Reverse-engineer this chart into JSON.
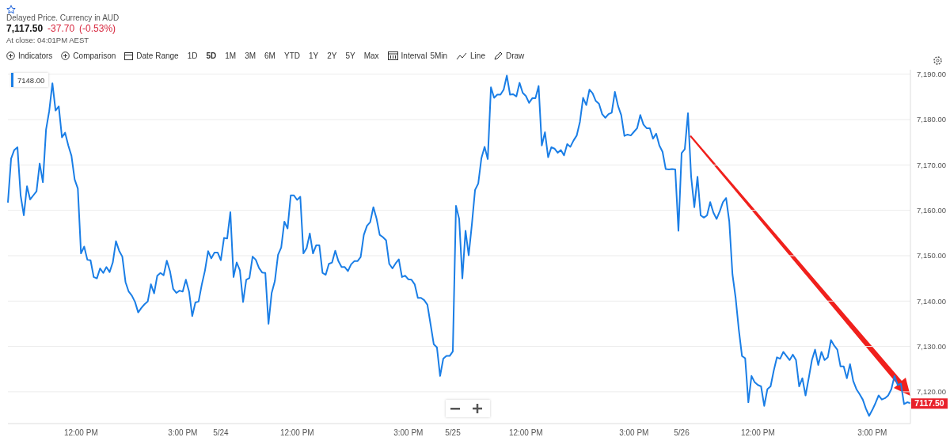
{
  "chart_data": {
    "type": "line",
    "subtitle": "Delayed Price. Currency in AUD",
    "annotations": [
      "7,117.50",
      "-37.70",
      "(-0.53%)",
      "At close: 04:01PM AEST",
      "Indicators",
      "Comparison",
      "Date Range",
      "1D",
      "5D",
      "1M",
      "3M",
      "6M",
      "YTD",
      "1Y",
      "2Y",
      "5Y",
      "Max",
      "Interval",
      "5Min",
      "Line",
      "Draw",
      "7148.00",
      "7117.50"
    ],
    "categories": [
      null,
      null,
      null,
      null,
      null,
      null,
      null,
      null,
      null,
      null,
      null,
      null,
      null,
      null,
      null,
      null,
      null,
      null,
      null,
      null,
      null,
      null,
      null,
      "12:00 PM",
      null,
      null,
      null,
      null,
      null,
      null,
      null,
      null,
      null,
      null,
      null,
      null,
      null,
      null,
      null,
      null,
      null,
      null,
      null,
      null,
      null,
      null,
      null,
      null,
      null,
      null,
      null,
      null,
      null,
      null,
      null,
      "3:00 PM",
      null,
      null,
      null,
      null,
      null,
      null,
      null,
      null,
      null,
      null,
      null,
      "5/24",
      null,
      null,
      null,
      null,
      null,
      null,
      null,
      null,
      null,
      null,
      null,
      null,
      null,
      null,
      null,
      null,
      null,
      null,
      null,
      null,
      null,
      null,
      null,
      "12:00 PM",
      null,
      null,
      null,
      null,
      null,
      null,
      null,
      null,
      null,
      null,
      null,
      null,
      null,
      null,
      null,
      null,
      null,
      null,
      null,
      null,
      null,
      null,
      null,
      null,
      null,
      null,
      null,
      null,
      null,
      null,
      null,
      null,
      null,
      null,
      "3:00 PM",
      null,
      null,
      null,
      null,
      null,
      null,
      null,
      null,
      null,
      null,
      null,
      null,
      null,
      "5/25",
      null,
      null,
      null,
      null,
      null,
      null,
      null,
      null,
      null,
      null,
      null,
      null,
      null,
      null,
      null,
      null,
      null,
      null,
      null,
      null,
      null,
      null,
      "12:00 PM",
      null,
      null,
      null,
      null,
      null,
      null,
      null,
      null,
      null,
      null,
      null,
      null,
      null,
      null,
      null,
      null,
      null,
      null,
      null,
      null,
      null,
      null,
      null,
      null,
      null,
      null,
      null,
      null,
      null,
      null,
      null,
      null,
      null,
      "3:00 PM",
      null,
      null,
      null,
      null,
      null,
      null,
      null,
      null,
      null,
      null,
      null,
      null,
      null,
      null,
      "5/26",
      null,
      null,
      null,
      null,
      null,
      null,
      null,
      null,
      null,
      null,
      null,
      null,
      null,
      null,
      null,
      null,
      null,
      null,
      null,
      null,
      null,
      null,
      null,
      "12:00 PM",
      null,
      null,
      null,
      null,
      null,
      null,
      null,
      null,
      null,
      null,
      null,
      null,
      null,
      null,
      null,
      null,
      null,
      null,
      null,
      null,
      null,
      null,
      null,
      null,
      null,
      null,
      null,
      null,
      null,
      null,
      null,
      null,
      null,
      null,
      null,
      "3:00 PM",
      null,
      null,
      null,
      null,
      null,
      null,
      null,
      null,
      null,
      null,
      null,
      null
    ],
    "series": [
      {
        "color": "#1a7ee6",
        "values": [
          7161.7,
          7171.4,
          7173.3,
          7173.9,
          7163.3,
          7158.9,
          7165.3,
          7162.4,
          7163.3,
          7164.2,
          7170.3,
          7166.2,
          7177.8,
          7181.9,
          7188.0,
          7182.0,
          7182.9,
          7176.1,
          7177.1,
          7174.3,
          7172.0,
          7166.8,
          7164.8,
          7150.5,
          7152.0,
          7149.1,
          7149.0,
          7145.3,
          7145.0,
          7147.2,
          7146.2,
          7147.5,
          7146.4,
          7148.5,
          7153.2,
          7151.1,
          7149.8,
          7144.2,
          7142.1,
          7141.2,
          7139.8,
          7137.5,
          7138.5,
          7139.3,
          7139.9,
          7143.7,
          7141.7,
          7145.6,
          7146.2,
          7145.7,
          7148.9,
          7146.6,
          7142.7,
          7141.8,
          7142.3,
          7142.1,
          7144.7,
          7142.1,
          7136.7,
          7139.7,
          7139.9,
          7143.6,
          7146.7,
          7151.0,
          7149.4,
          7150.7,
          7150.7,
          7149.0,
          7153.9,
          7153.8,
          7159.6,
          7145.3,
          7148.5,
          7146.8,
          7139.8,
          7144.7,
          7145.1,
          7149.8,
          7149.1,
          7147.3,
          7146.3,
          7146.2,
          7135.0,
          7141.8,
          7144.4,
          7150.2,
          7151.8,
          7157.5,
          7156.0,
          7163.3,
          7163.3,
          7162.3,
          7163.0,
          7150.5,
          7151.7,
          7154.9,
          7150.5,
          7152.3,
          7152.3,
          7146.2,
          7145.8,
          7148.2,
          7148.5,
          7151.1,
          7148.8,
          7147.5,
          7147.5,
          7146.6,
          7148.1,
          7148.8,
          7148.8,
          7149.7,
          7154.6,
          7156.6,
          7157.4,
          7160.7,
          7158.2,
          7154.6,
          7154.1,
          7153.4,
          7148.2,
          7147.2,
          7148.3,
          7149.2,
          7145.3,
          7145.6,
          7144.8,
          7144.7,
          7143.7,
          7140.7,
          7140.7,
          7140.2,
          7139.2,
          7134.9,
          7130.5,
          7129.8,
          7123.5,
          7127.3,
          7127.9,
          7127.9,
          7128.9,
          7161.0,
          7158.1,
          7145.0,
          7155.5,
          7150.1,
          7156.9,
          7164.5,
          7165.9,
          7171.5,
          7174.0,
          7171.3,
          7187.1,
          7184.8,
          7185.5,
          7185.5,
          7186.6,
          7189.7,
          7185.5,
          7185.6,
          7185.1,
          7188.1,
          7185.9,
          7185.2,
          7183.7,
          7184.7,
          7184.7,
          7187.4,
          7174.3,
          7177.2,
          7171.7,
          7173.9,
          7173.6,
          7172.7,
          7173.3,
          7172.1,
          7174.6,
          7174.0,
          7175.4,
          7176.5,
          7179.5,
          7184.8,
          7183.2,
          7186.6,
          7185.8,
          7184.1,
          7183.5,
          7181.2,
          7180.4,
          7181.2,
          7181.5,
          7186.1,
          7183.0,
          7181.0,
          7176.4,
          7176.7,
          7176.5,
          7177.3,
          7178.1,
          7181.0,
          7178.9,
          7178.1,
          7178.1,
          7175.8,
          7176.9,
          7174.3,
          7172.9,
          7169.1,
          7169.0,
          7169.1,
          7169.0,
          7155.5,
          7172.6,
          7173.5,
          7181.4,
          7167.4,
          7160.7,
          7167.4,
          7158.9,
          7158.4,
          7158.9,
          7161.8,
          7159.5,
          7158.1,
          7159.8,
          7161.8,
          7162.7,
          7157.5,
          7145.9,
          7140.7,
          7133.7,
          7127.9,
          7127.4,
          7117.7,
          7123.5,
          7122.1,
          7121.5,
          7121.2,
          7116.9,
          7120.6,
          7121.2,
          7124.7,
          7127.6,
          7127.3,
          7128.8,
          7127.9,
          7127.0,
          7128.2,
          7127.0,
          7121.2,
          7123.0,
          7119.2,
          7123.0,
          7127.0,
          7129.3,
          7125.9,
          7128.8,
          7127.0,
          7127.6,
          7131.4,
          7130.2,
          7129.3,
          7125.6,
          7125.6,
          7123.0,
          7126.1,
          7122.4,
          7120.6,
          7119.5,
          7118.3,
          7116.3,
          7114.7,
          7116.0,
          7117.5,
          7119.2,
          7118.3,
          7118.6,
          7119.2,
          7120.6,
          7123.5,
          7121.5,
          7121.8,
          7117.3,
          7117.7,
          7117.5
        ]
      }
    ],
    "ylim": [
      7113,
      7191
    ],
    "yticks": [
      {
        "value": 7120,
        "label": "7,120.00"
      },
      {
        "value": 7130,
        "label": "7,130.00"
      },
      {
        "value": 7140,
        "label": "7,140.00"
      },
      {
        "value": 7150,
        "label": "7,150.00"
      },
      {
        "value": 7160,
        "label": "7,160.00"
      },
      {
        "value": 7170,
        "label": "7,170.00"
      },
      {
        "value": 7180,
        "label": "7,180.00"
      },
      {
        "value": 7190,
        "label": "7,190.00"
      }
    ],
    "grid": "y",
    "marker": "none",
    "line_style": "solid"
  }
}
